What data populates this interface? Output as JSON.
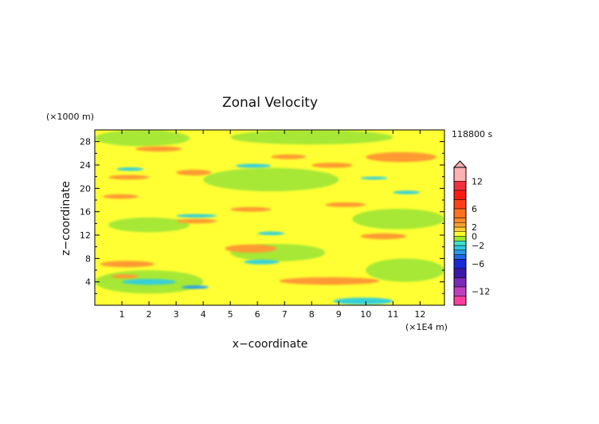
{
  "chart_data": {
    "type": "heatmap",
    "title": "Zonal Velocity",
    "xlabel": "x−coordinate",
    "ylabel": "z−coordinate",
    "x_unit": "(×1E4 m)",
    "y_unit": "(×1000 m)",
    "time_label": "118800 s",
    "xlim": [
      0,
      12.9
    ],
    "ylim": [
      0,
      30
    ],
    "x_ticks": [
      1,
      2,
      3,
      4,
      5,
      6,
      7,
      8,
      9,
      10,
      11,
      12
    ],
    "y_ticks": [
      4,
      8,
      12,
      16,
      20,
      24,
      28
    ],
    "colorbar": {
      "range": [
        -15,
        15
      ],
      "tick_values": [
        12,
        6,
        2,
        0,
        -2,
        -6,
        -12
      ],
      "tick_labels": [
        "12",
        "6",
        "2",
        "0",
        "−2",
        "−6",
        "−12"
      ],
      "levels": [
        {
          "lo": -15,
          "hi": -13,
          "color": "#ff3fa0"
        },
        {
          "lo": -13,
          "hi": -11,
          "color": "#c040c0"
        },
        {
          "lo": -11,
          "hi": -9,
          "color": "#7a2ab8"
        },
        {
          "lo": -9,
          "hi": -7,
          "color": "#3a1aa8"
        },
        {
          "lo": -7,
          "hi": -5,
          "color": "#1a2ad8"
        },
        {
          "lo": -5,
          "hi": -4,
          "color": "#1f6ae8"
        },
        {
          "lo": -4,
          "hi": -3,
          "color": "#2a9ae8"
        },
        {
          "lo": -3,
          "hi": -2,
          "color": "#30c8e0"
        },
        {
          "lo": -2,
          "hi": -1,
          "color": "#3fe0c8"
        },
        {
          "lo": -1,
          "hi": 0,
          "color": "#9ee830"
        },
        {
          "lo": 0,
          "hi": 1,
          "color": "#ffff30"
        },
        {
          "lo": 1,
          "hi": 2,
          "color": "#ffd030"
        },
        {
          "lo": 2,
          "hi": 3,
          "color": "#ffa030"
        },
        {
          "lo": 3,
          "hi": 4,
          "color": "#ff8a28"
        },
        {
          "lo": 4,
          "hi": 6,
          "color": "#ff7020"
        },
        {
          "lo": 6,
          "hi": 8,
          "color": "#ff4018"
        },
        {
          "lo": 8,
          "hi": 10,
          "color": "#ff1a10"
        },
        {
          "lo": 10,
          "hi": 12,
          "color": "#f03040"
        },
        {
          "lo": 12,
          "hi": 15,
          "color": "#ffb0b0"
        }
      ]
    },
    "field_colors": {
      "background": "#ffff33",
      "weak_negative": "#a6e836",
      "positive": "#ff9a32",
      "negative": "#36d0d8",
      "strong_negative": "#2aa0e8"
    },
    "regions": [
      {
        "x": [
          0.0,
          12.9
        ],
        "y": [
          0,
          30
        ],
        "level": "background"
      },
      {
        "x": [
          0.0,
          3.5
        ],
        "y": [
          27.2,
          30
        ],
        "level": "weak_negative"
      },
      {
        "x": [
          5.0,
          11.0
        ],
        "y": [
          27.5,
          30
        ],
        "level": "weak_negative"
      },
      {
        "x": [
          0.5,
          3.5
        ],
        "y": [
          12.5,
          15.0
        ],
        "level": "weak_negative"
      },
      {
        "x": [
          4.0,
          9.0
        ],
        "y": [
          19.5,
          23.5
        ],
        "level": "weak_negative"
      },
      {
        "x": [
          9.5,
          12.9
        ],
        "y": [
          13.0,
          16.5
        ],
        "level": "weak_negative"
      },
      {
        "x": [
          0.0,
          4.0
        ],
        "y": [
          2.0,
          6.0
        ],
        "level": "weak_negative"
      },
      {
        "x": [
          5.0,
          8.5
        ],
        "y": [
          7.5,
          10.5
        ],
        "level": "weak_negative"
      },
      {
        "x": [
          10.0,
          12.9
        ],
        "y": [
          4.0,
          8.0
        ],
        "level": "weak_negative"
      },
      {
        "x": [
          1.5,
          3.2
        ],
        "y": [
          26.3,
          27.2
        ],
        "level": "positive"
      },
      {
        "x": [
          6.5,
          7.8
        ],
        "y": [
          25.0,
          25.8
        ],
        "level": "positive"
      },
      {
        "x": [
          10.0,
          12.6
        ],
        "y": [
          24.5,
          26.2
        ],
        "level": "positive"
      },
      {
        "x": [
          0.5,
          2.0
        ],
        "y": [
          21.5,
          22.3
        ],
        "level": "positive"
      },
      {
        "x": [
          3.0,
          4.3
        ],
        "y": [
          22.2,
          23.2
        ],
        "level": "positive"
      },
      {
        "x": [
          8.0,
          9.5
        ],
        "y": [
          23.5,
          24.4
        ],
        "level": "positive"
      },
      {
        "x": [
          0.3,
          1.6
        ],
        "y": [
          18.2,
          19.0
        ],
        "level": "positive"
      },
      {
        "x": [
          5.0,
          6.5
        ],
        "y": [
          16.0,
          16.8
        ],
        "level": "positive"
      },
      {
        "x": [
          8.5,
          10.0
        ],
        "y": [
          16.8,
          17.6
        ],
        "level": "positive"
      },
      {
        "x": [
          3.0,
          4.5
        ],
        "y": [
          14.0,
          14.8
        ],
        "level": "positive"
      },
      {
        "x": [
          9.8,
          11.5
        ],
        "y": [
          11.3,
          12.3
        ],
        "level": "positive"
      },
      {
        "x": [
          4.8,
          6.7
        ],
        "y": [
          9.0,
          10.4
        ],
        "level": "positive"
      },
      {
        "x": [
          0.2,
          2.2
        ],
        "y": [
          6.5,
          7.6
        ],
        "level": "positive"
      },
      {
        "x": [
          6.8,
          10.5
        ],
        "y": [
          3.5,
          4.8
        ],
        "level": "positive"
      },
      {
        "x": [
          0.6,
          1.6
        ],
        "y": [
          4.6,
          5.3
        ],
        "level": "positive"
      },
      {
        "x": [
          5.2,
          6.5
        ],
        "y": [
          23.5,
          24.2
        ],
        "level": "negative"
      },
      {
        "x": [
          0.8,
          1.8
        ],
        "y": [
          23.0,
          23.6
        ],
        "level": "negative"
      },
      {
        "x": [
          11.0,
          12.0
        ],
        "y": [
          19.0,
          19.6
        ],
        "level": "negative"
      },
      {
        "x": [
          3.0,
          4.5
        ],
        "y": [
          15.0,
          15.6
        ],
        "level": "negative"
      },
      {
        "x": [
          6.0,
          7.0
        ],
        "y": [
          12.0,
          12.6
        ],
        "level": "negative"
      },
      {
        "x": [
          5.5,
          6.8
        ],
        "y": [
          7.0,
          7.8
        ],
        "level": "negative"
      },
      {
        "x": [
          1.0,
          3.0
        ],
        "y": [
          3.5,
          4.5
        ],
        "level": "negative"
      },
      {
        "x": [
          3.2,
          4.2
        ],
        "y": [
          2.8,
          3.4
        ],
        "level": "strong_negative"
      },
      {
        "x": [
          8.8,
          11.0
        ],
        "y": [
          0.1,
          1.3
        ],
        "level": "negative"
      },
      {
        "x": [
          9.8,
          10.8
        ],
        "y": [
          21.5,
          22.0
        ],
        "level": "negative"
      }
    ]
  }
}
